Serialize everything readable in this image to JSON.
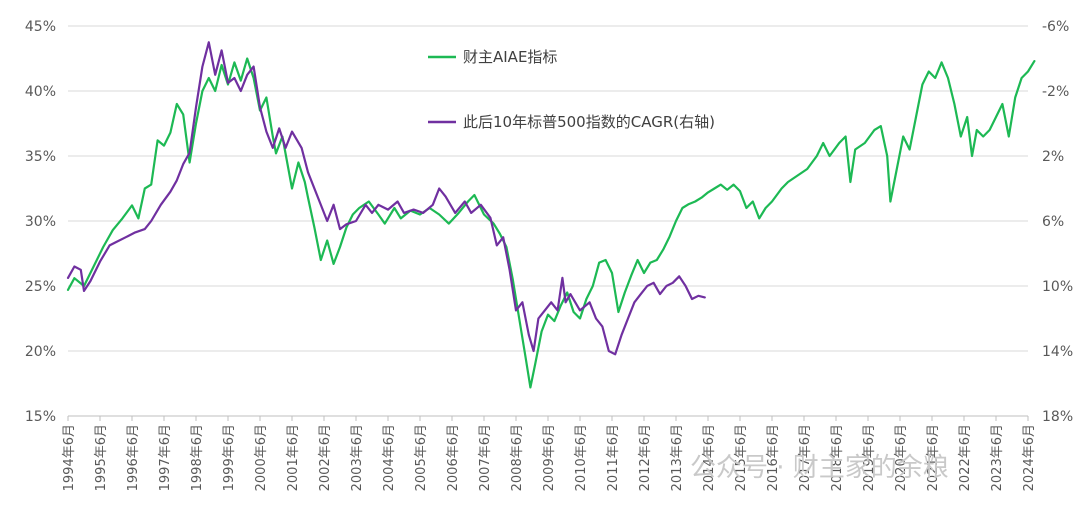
{
  "chart_data": {
    "type": "line",
    "legend_placement": "top-center",
    "grid": true,
    "y_left": {
      "ylim": [
        15,
        45
      ],
      "ticks": [
        "15%",
        "20%",
        "25%",
        "30%",
        "35%",
        "40%",
        "45%"
      ]
    },
    "y_right": {
      "ylim": [
        18,
        -6
      ],
      "inverted": true,
      "ticks": [
        "18%",
        "14%",
        "10%",
        "6%",
        "2%",
        "-2%",
        "-6%"
      ]
    },
    "x_ticks": [
      "1994年6月",
      "1995年6月",
      "1996年6月",
      "1997年6月",
      "1998年6月",
      "1999年6月",
      "2000年6月",
      "2001年6月",
      "2002年6月",
      "2003年6月",
      "2004年6月",
      "2005年6月",
      "2006年6月",
      "2007年6月",
      "2008年6月",
      "2009年6月",
      "2010年6月",
      "2011年6月",
      "2012年6月",
      "2013年6月",
      "2014年6月",
      "2015年6月",
      "2016年6月",
      "2017年6月",
      "2018年6月",
      "2019年6月",
      "2020年6月",
      "2021年6月",
      "2022年6月",
      "2023年6月",
      "2024年6月"
    ],
    "series": [
      {
        "name": "财主AIAE指标",
        "axis": "left",
        "color": "#1db954",
        "points": [
          [
            1994.5,
            24.7
          ],
          [
            1994.7,
            25.6
          ],
          [
            1995.0,
            25.0
          ],
          [
            1995.3,
            26.5
          ],
          [
            1995.6,
            28.0
          ],
          [
            1995.9,
            29.3
          ],
          [
            1996.2,
            30.2
          ],
          [
            1996.5,
            31.2
          ],
          [
            1996.7,
            30.2
          ],
          [
            1996.9,
            32.5
          ],
          [
            1997.1,
            32.8
          ],
          [
            1997.3,
            36.2
          ],
          [
            1997.5,
            35.8
          ],
          [
            1997.7,
            36.8
          ],
          [
            1997.9,
            39.0
          ],
          [
            1998.1,
            38.2
          ],
          [
            1998.3,
            34.5
          ],
          [
            1998.5,
            37.5
          ],
          [
            1998.7,
            40.0
          ],
          [
            1998.9,
            41.0
          ],
          [
            1999.1,
            40.0
          ],
          [
            1999.3,
            42.0
          ],
          [
            1999.5,
            40.5
          ],
          [
            1999.7,
            42.2
          ],
          [
            1999.9,
            40.8
          ],
          [
            2000.1,
            42.5
          ],
          [
            2000.3,
            41.0
          ],
          [
            2000.5,
            38.5
          ],
          [
            2000.7,
            39.5
          ],
          [
            2000.9,
            36.5
          ],
          [
            2001.0,
            35.2
          ],
          [
            2001.2,
            36.5
          ],
          [
            2001.5,
            32.5
          ],
          [
            2001.7,
            34.5
          ],
          [
            2001.9,
            33.0
          ],
          [
            2002.0,
            31.8
          ],
          [
            2002.2,
            29.5
          ],
          [
            2002.4,
            27.0
          ],
          [
            2002.6,
            28.5
          ],
          [
            2002.8,
            26.7
          ],
          [
            2003.0,
            28.0
          ],
          [
            2003.2,
            29.5
          ],
          [
            2003.4,
            30.5
          ],
          [
            2003.6,
            31.0
          ],
          [
            2003.9,
            31.5
          ],
          [
            2004.2,
            30.5
          ],
          [
            2004.4,
            29.8
          ],
          [
            2004.7,
            31.0
          ],
          [
            2004.9,
            30.2
          ],
          [
            2005.2,
            30.8
          ],
          [
            2005.5,
            30.5
          ],
          [
            2005.8,
            31.0
          ],
          [
            2006.1,
            30.5
          ],
          [
            2006.4,
            29.8
          ],
          [
            2006.7,
            30.6
          ],
          [
            2007.0,
            31.5
          ],
          [
            2007.2,
            32.0
          ],
          [
            2007.5,
            30.5
          ],
          [
            2007.8,
            29.8
          ],
          [
            2008.0,
            29.0
          ],
          [
            2008.2,
            28.0
          ],
          [
            2008.4,
            25.5
          ],
          [
            2008.6,
            22.5
          ],
          [
            2008.8,
            19.5
          ],
          [
            2008.95,
            17.2
          ],
          [
            2009.1,
            19.0
          ],
          [
            2009.3,
            21.5
          ],
          [
            2009.5,
            22.8
          ],
          [
            2009.7,
            22.3
          ],
          [
            2009.9,
            23.5
          ],
          [
            2010.1,
            24.5
          ],
          [
            2010.3,
            23.0
          ],
          [
            2010.5,
            22.5
          ],
          [
            2010.7,
            24.0
          ],
          [
            2010.9,
            25.0
          ],
          [
            2011.1,
            26.8
          ],
          [
            2011.3,
            27.0
          ],
          [
            2011.5,
            26.0
          ],
          [
            2011.7,
            23.0
          ],
          [
            2011.9,
            24.5
          ],
          [
            2012.1,
            25.8
          ],
          [
            2012.3,
            27.0
          ],
          [
            2012.5,
            26.0
          ],
          [
            2012.7,
            26.8
          ],
          [
            2012.9,
            27.0
          ],
          [
            2013.1,
            27.8
          ],
          [
            2013.3,
            28.8
          ],
          [
            2013.5,
            30.0
          ],
          [
            2013.7,
            31.0
          ],
          [
            2013.9,
            31.3
          ],
          [
            2014.1,
            31.5
          ],
          [
            2014.3,
            31.8
          ],
          [
            2014.5,
            32.2
          ],
          [
            2014.7,
            32.5
          ],
          [
            2014.9,
            32.8
          ],
          [
            2015.1,
            32.4
          ],
          [
            2015.3,
            32.8
          ],
          [
            2015.5,
            32.3
          ],
          [
            2015.7,
            31.0
          ],
          [
            2015.9,
            31.5
          ],
          [
            2016.1,
            30.2
          ],
          [
            2016.3,
            31.0
          ],
          [
            2016.5,
            31.5
          ],
          [
            2016.8,
            32.5
          ],
          [
            2017.0,
            33.0
          ],
          [
            2017.3,
            33.5
          ],
          [
            2017.6,
            34.0
          ],
          [
            2017.9,
            35.0
          ],
          [
            2018.1,
            36.0
          ],
          [
            2018.3,
            35.0
          ],
          [
            2018.6,
            36.0
          ],
          [
            2018.8,
            36.5
          ],
          [
            2018.95,
            33.0
          ],
          [
            2019.1,
            35.5
          ],
          [
            2019.4,
            36.0
          ],
          [
            2019.7,
            37.0
          ],
          [
            2019.9,
            37.3
          ],
          [
            2020.1,
            35.0
          ],
          [
            2020.2,
            31.5
          ],
          [
            2020.4,
            34.0
          ],
          [
            2020.6,
            36.5
          ],
          [
            2020.8,
            35.5
          ],
          [
            2021.0,
            38.0
          ],
          [
            2021.2,
            40.5
          ],
          [
            2021.4,
            41.5
          ],
          [
            2021.6,
            41.0
          ],
          [
            2021.8,
            42.2
          ],
          [
            2022.0,
            41.0
          ],
          [
            2022.2,
            39.0
          ],
          [
            2022.4,
            36.5
          ],
          [
            2022.6,
            38.0
          ],
          [
            2022.75,
            35.0
          ],
          [
            2022.9,
            37.0
          ],
          [
            2023.1,
            36.5
          ],
          [
            2023.3,
            37.0
          ],
          [
            2023.5,
            38.0
          ],
          [
            2023.7,
            39.0
          ],
          [
            2023.9,
            36.5
          ],
          [
            2024.1,
            39.5
          ],
          [
            2024.3,
            41.0
          ],
          [
            2024.5,
            41.5
          ],
          [
            2024.7,
            42.3
          ]
        ]
      },
      {
        "name": "此后10年标普500指数的CAGR(右轴)",
        "axis": "right",
        "color": "#7030a0",
        "points": [
          [
            1994.5,
            9.5
          ],
          [
            1994.7,
            8.8
          ],
          [
            1994.9,
            9.0
          ],
          [
            1995.0,
            10.3
          ],
          [
            1995.2,
            9.7
          ],
          [
            1995.5,
            8.5
          ],
          [
            1995.8,
            7.5
          ],
          [
            1996.0,
            7.3
          ],
          [
            1996.3,
            7.0
          ],
          [
            1996.6,
            6.7
          ],
          [
            1996.9,
            6.5
          ],
          [
            1997.1,
            6.0
          ],
          [
            1997.4,
            5.0
          ],
          [
            1997.7,
            4.2
          ],
          [
            1997.9,
            3.5
          ],
          [
            1998.1,
            2.5
          ],
          [
            1998.3,
            1.8
          ],
          [
            1998.5,
            -1.0
          ],
          [
            1998.7,
            -3.5
          ],
          [
            1998.9,
            -5.0
          ],
          [
            1999.1,
            -3.0
          ],
          [
            1999.3,
            -4.5
          ],
          [
            1999.5,
            -2.5
          ],
          [
            1999.7,
            -2.8
          ],
          [
            1999.9,
            -2.0
          ],
          [
            2000.1,
            -3.0
          ],
          [
            2000.3,
            -3.5
          ],
          [
            2000.5,
            -1.0
          ],
          [
            2000.7,
            0.5
          ],
          [
            2000.9,
            1.5
          ],
          [
            2001.1,
            0.3
          ],
          [
            2001.3,
            1.5
          ],
          [
            2001.5,
            0.5
          ],
          [
            2001.8,
            1.5
          ],
          [
            2002.0,
            3.0
          ],
          [
            2002.3,
            4.5
          ],
          [
            2002.6,
            6.0
          ],
          [
            2002.8,
            5.0
          ],
          [
            2003.0,
            6.5
          ],
          [
            2003.2,
            6.2
          ],
          [
            2003.5,
            6.0
          ],
          [
            2003.8,
            5.0
          ],
          [
            2004.0,
            5.5
          ],
          [
            2004.2,
            5.0
          ],
          [
            2004.5,
            5.3
          ],
          [
            2004.8,
            4.8
          ],
          [
            2005.0,
            5.5
          ],
          [
            2005.3,
            5.3
          ],
          [
            2005.6,
            5.5
          ],
          [
            2005.9,
            5.0
          ],
          [
            2006.1,
            4.0
          ],
          [
            2006.3,
            4.5
          ],
          [
            2006.6,
            5.5
          ],
          [
            2006.9,
            4.8
          ],
          [
            2007.1,
            5.5
          ],
          [
            2007.4,
            5.0
          ],
          [
            2007.7,
            5.8
          ],
          [
            2007.9,
            7.5
          ],
          [
            2008.1,
            7.0
          ],
          [
            2008.3,
            9.0
          ],
          [
            2008.5,
            11.5
          ],
          [
            2008.7,
            11.0
          ],
          [
            2008.9,
            13.0
          ],
          [
            2009.05,
            14.0
          ],
          [
            2009.2,
            12.0
          ],
          [
            2009.4,
            11.5
          ],
          [
            2009.6,
            11.0
          ],
          [
            2009.8,
            11.5
          ],
          [
            2009.95,
            9.5
          ],
          [
            2010.05,
            11.0
          ],
          [
            2010.2,
            10.5
          ],
          [
            2010.5,
            11.5
          ],
          [
            2010.8,
            11.0
          ],
          [
            2011.0,
            12.0
          ],
          [
            2011.2,
            12.5
          ],
          [
            2011.4,
            14.0
          ],
          [
            2011.6,
            14.2
          ],
          [
            2011.8,
            13.0
          ],
          [
            2012.0,
            12.0
          ],
          [
            2012.2,
            11.0
          ],
          [
            2012.4,
            10.5
          ],
          [
            2012.6,
            10.0
          ],
          [
            2012.8,
            9.8
          ],
          [
            2013.0,
            10.5
          ],
          [
            2013.2,
            10.0
          ],
          [
            2013.4,
            9.8
          ],
          [
            2013.6,
            9.4
          ],
          [
            2013.8,
            10.0
          ],
          [
            2014.0,
            10.8
          ],
          [
            2014.2,
            10.6
          ],
          [
            2014.4,
            10.7
          ]
        ]
      }
    ]
  },
  "watermark": "公众号 · 财主家的余粮"
}
